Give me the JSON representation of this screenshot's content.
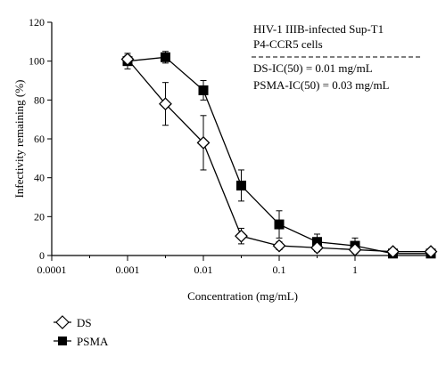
{
  "chart_data": {
    "type": "scatter",
    "x_scale": "log",
    "xlabel": "Concentration (mg/mL)",
    "ylabel": "Infectivity remaining (%)",
    "xlim": [
      0.0001,
      10
    ],
    "ylim": [
      0,
      120
    ],
    "x_ticks": [
      0.0001,
      0.001,
      0.01,
      0.1,
      1
    ],
    "x_tick_labels": [
      "0.0001",
      "0.001",
      "0.01",
      "0.1",
      "1"
    ],
    "y_ticks": [
      0,
      20,
      40,
      60,
      80,
      100,
      120
    ],
    "y_tick_labels": [
      "0",
      "20",
      "40",
      "60",
      "80",
      "100",
      "120"
    ],
    "grid": false,
    "annotation": {
      "line1": "HIV-1 IIIB-infected Sup-T1",
      "line2": "P4-CCR5 cells",
      "line3": "DS-IC(50) = 0.01 mg/mL",
      "line4": "PSMA-IC(50) = 0.03 mg/mL"
    },
    "legend_position": "bottom-left, below plot",
    "series": [
      {
        "name": "DS",
        "marker": "open-diamond",
        "color": "#000000",
        "x": [
          0.001,
          0.00316,
          0.01,
          0.0316,
          0.1,
          0.316,
          1,
          3.16,
          10
        ],
        "y": [
          101,
          78,
          58,
          10,
          5,
          4,
          3,
          2,
          2
        ],
        "error": [
          2,
          11,
          14,
          4,
          2,
          2,
          1,
          1,
          1
        ]
      },
      {
        "name": "PSMA",
        "marker": "filled-square",
        "color": "#000000",
        "x": [
          0.001,
          0.00316,
          0.01,
          0.0316,
          0.1,
          0.316,
          1,
          3.16,
          10
        ],
        "y": [
          100,
          102,
          85,
          36,
          16,
          7,
          5,
          1,
          1
        ],
        "error": [
          4,
          3,
          5,
          8,
          7,
          4,
          4,
          1,
          1
        ]
      }
    ]
  }
}
